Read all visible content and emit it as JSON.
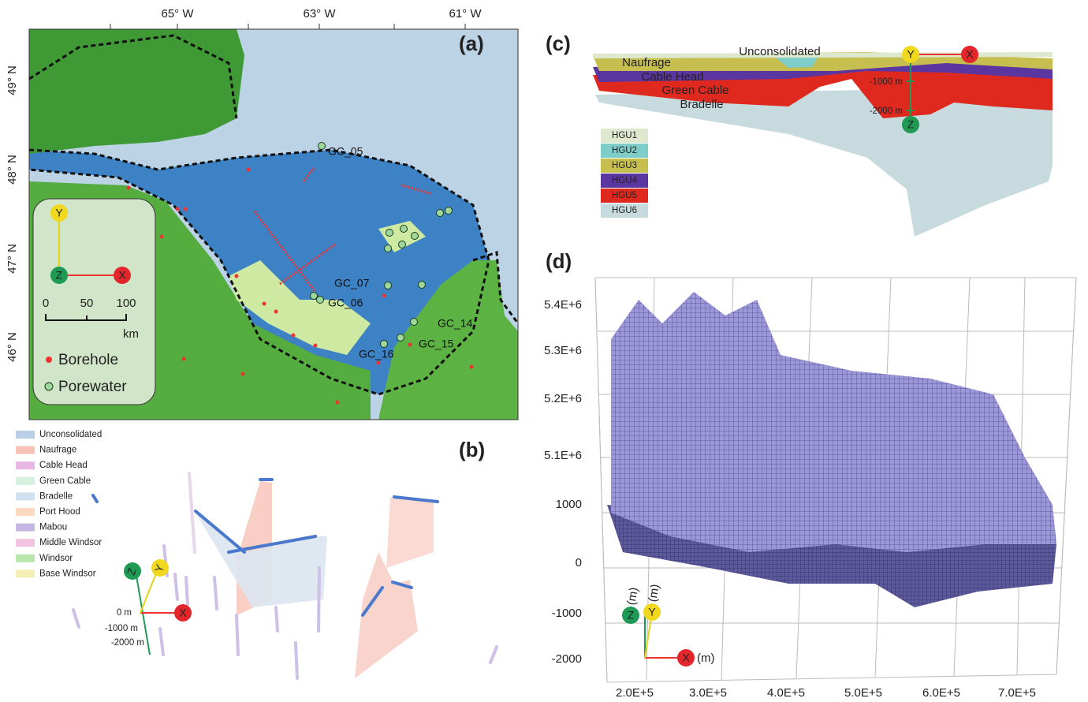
{
  "panel_a": {
    "label": "(a)",
    "lon_ticks": [
      "65° W",
      "63° W",
      "61° W"
    ],
    "lat_ticks": [
      "49° N",
      "48° N",
      "47° N",
      "46° N"
    ],
    "axes": {
      "y": "Y",
      "z": "Z",
      "x": "X"
    },
    "scale": {
      "zero": "0",
      "mid": "50",
      "end": "100",
      "unit": "km"
    },
    "legend": {
      "borehole": "Borehole",
      "porewater": "Porewater"
    },
    "wells": [
      "GC_05",
      "GC_07",
      "GC_06",
      "GC_14",
      "GC_15",
      "GC_16"
    ]
  },
  "panel_b": {
    "label": "(b)",
    "legend": [
      {
        "label": "Unconsolidated",
        "color": "#b9cfe8"
      },
      {
        "label": "Naufrage",
        "color": "#f6c2b6"
      },
      {
        "label": "Cable Head",
        "color": "#e9b7e3"
      },
      {
        "label": "Green Cable",
        "color": "#d5f0dd"
      },
      {
        "label": "Bradelle",
        "color": "#cfe0ee"
      },
      {
        "label": "Port Hood",
        "color": "#fbd9bd"
      },
      {
        "label": "Mabou",
        "color": "#c5b7e3"
      },
      {
        "label": "Middle Windsor",
        "color": "#f3c2e0"
      },
      {
        "label": "Windsor",
        "color": "#b8e6ad"
      },
      {
        "label": "Base Windsor",
        "color": "#f3efb5"
      }
    ],
    "axes": {
      "z": "Z",
      "y": "Y",
      "x": "X"
    },
    "depths": [
      "0 m",
      "-1000 m",
      "-2000 m"
    ]
  },
  "panel_c": {
    "label": "(c)",
    "units": [
      "Unconsolidated",
      "Naufrage",
      "Cable Head",
      "Green Cable",
      "Bradelle"
    ],
    "axes": {
      "y": "Y",
      "x": "X",
      "z": "Z"
    },
    "depths": [
      "-1000 m",
      "-2000 m"
    ],
    "legend": [
      {
        "label": "HGU1",
        "color": "#dde8cf"
      },
      {
        "label": "HGU2",
        "color": "#7ecdc8"
      },
      {
        "label": "HGU3",
        "color": "#c6be4f"
      },
      {
        "label": "HGU4",
        "color": "#5b35a0"
      },
      {
        "label": "HGU5",
        "color": "#e0291e"
      },
      {
        "label": "HGU6",
        "color": "#c7dadd"
      }
    ]
  },
  "panel_d": {
    "label": "(d)",
    "y_labels": [
      "5.4E+6",
      "5.3E+6",
      "5.2E+6",
      "5.1E+6",
      "1000",
      "0",
      "-1000",
      "-2000"
    ],
    "x_labels": [
      "2.0E+5",
      "3.0E+5",
      "4.0E+5",
      "5.0E+5",
      "6.0E+5",
      "7.0E+5"
    ],
    "axes": {
      "z": "Z",
      "y": "Y",
      "x": "X",
      "unit": "(m)"
    }
  }
}
